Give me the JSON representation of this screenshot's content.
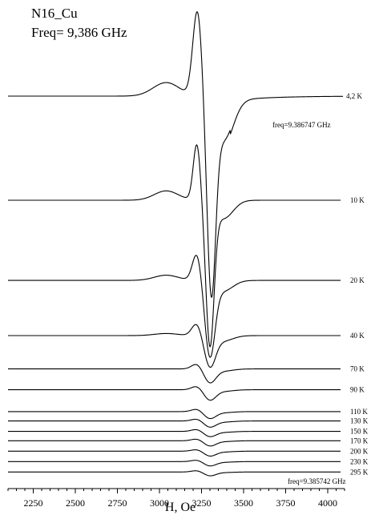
{
  "chart_data": {
    "type": "line",
    "title_lines": [
      "N16_Cu",
      "Freq= 9,386 GHz"
    ],
    "xlabel": "H, Oe",
    "ylabel": "",
    "xlim": [
      2100,
      4100
    ],
    "x_ticks": [
      2250,
      2500,
      2750,
      3000,
      3250,
      3500,
      3750,
      4000
    ],
    "grid": false,
    "legend": "none",
    "annotations": [
      {
        "text": "freq=9.386747 GHz",
        "near_series": "4,2 K"
      },
      {
        "text": "freq=9.385742 GHz",
        "near_series": "295 K"
      }
    ],
    "series": [
      {
        "name": "4,2 K",
        "baseline": 0,
        "peak": 0.0,
        "shoulder": 0.13,
        "valley": 0.0,
        "shoulder_right": -0.46
      },
      {
        "name": "10 K",
        "baseline": -1.0,
        "peak": 0.54,
        "shoulder": 0.09,
        "valley": -0.84,
        "shoulder_right": -0.7
      },
      {
        "name": "20 K",
        "baseline": -1.77,
        "peak": 0.26,
        "shoulder": 0.05,
        "valley": -0.44,
        "shoulder_right": -0.4
      },
      {
        "name": "40 K",
        "baseline": -2.3,
        "peak": 0.12,
        "shoulder": 0.02,
        "valley": -0.18,
        "shoulder_right": -0.2
      },
      {
        "name": "70 K",
        "baseline": -2.62,
        "peak": 0.05,
        "shoulder": 0.0,
        "valley": -0.08,
        "shoulder_right": -0.08
      },
      {
        "name": "90 K",
        "baseline": -2.82,
        "peak": 0.035,
        "shoulder": 0.0,
        "valley": -0.06,
        "shoulder_right": -0.06
      },
      {
        "name": "110 K",
        "baseline": -3.03,
        "peak": 0.025,
        "shoulder": 0.0,
        "valley": -0.04,
        "shoulder_right": -0.04
      },
      {
        "name": "130 K",
        "baseline": -3.12,
        "peak": 0.02,
        "shoulder": 0.0,
        "valley": -0.035,
        "shoulder_right": -0.04
      },
      {
        "name": "150 K",
        "baseline": -3.22,
        "peak": 0.02,
        "shoulder": 0.0,
        "valley": -0.03,
        "shoulder_right": -0.035
      },
      {
        "name": "170 K",
        "baseline": -3.31,
        "peak": 0.018,
        "shoulder": 0.0,
        "valley": -0.03,
        "shoulder_right": -0.03
      },
      {
        "name": "200 K",
        "baseline": -3.41,
        "peak": 0.016,
        "shoulder": 0.0,
        "valley": -0.028,
        "shoulder_right": -0.03
      },
      {
        "name": "230 K",
        "baseline": -3.51,
        "peak": 0.015,
        "shoulder": 0.0,
        "valley": -0.025,
        "shoulder_right": -0.025
      },
      {
        "name": "295 K",
        "baseline": -3.61,
        "peak": 0.014,
        "shoulder": 0.0,
        "valley": -0.022,
        "shoulder_right": -0.02
      }
    ]
  }
}
